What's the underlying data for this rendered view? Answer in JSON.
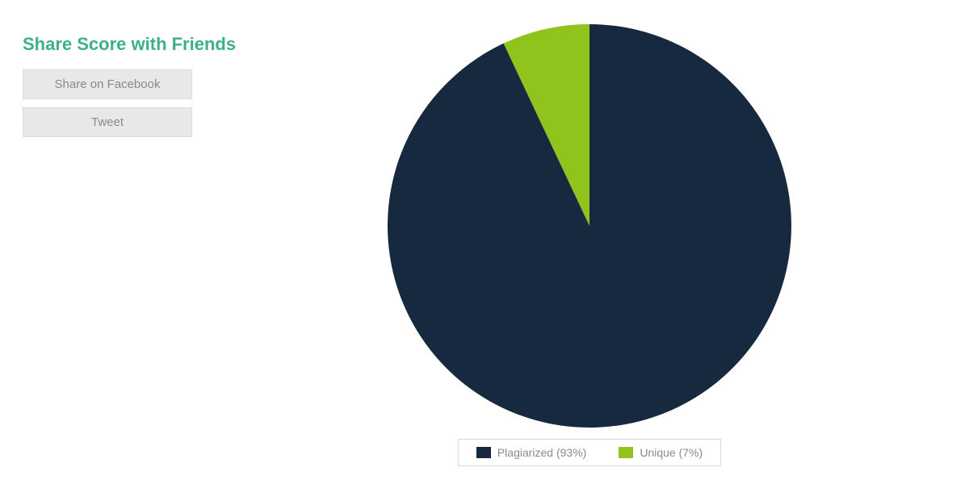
{
  "sidebar": {
    "title": "Share Score with Friends",
    "title_color": "#3db08a",
    "title_fontsize": 22,
    "buttons": [
      {
        "label": "Share on Facebook"
      },
      {
        "label": "Tweet"
      }
    ],
    "button_bg": "#e8e8e8",
    "button_text_color": "#8a8a8a"
  },
  "chart": {
    "type": "pie",
    "values": [
      93,
      7
    ],
    "labels": [
      "Plagiarized",
      "Unique"
    ],
    "colors": [
      "#16293f",
      "#91c31d"
    ],
    "background": "#ffffff",
    "start_angle_deg": -90,
    "radius": 250,
    "legend": {
      "items": [
        {
          "swatch": "#16293f",
          "text": "Plagiarized (93%)"
        },
        {
          "swatch": "#91c31d",
          "text": "Unique (7%)"
        }
      ],
      "border_color": "#d9d9d9",
      "text_color": "#8a8a8a",
      "fontsize": 14
    }
  }
}
